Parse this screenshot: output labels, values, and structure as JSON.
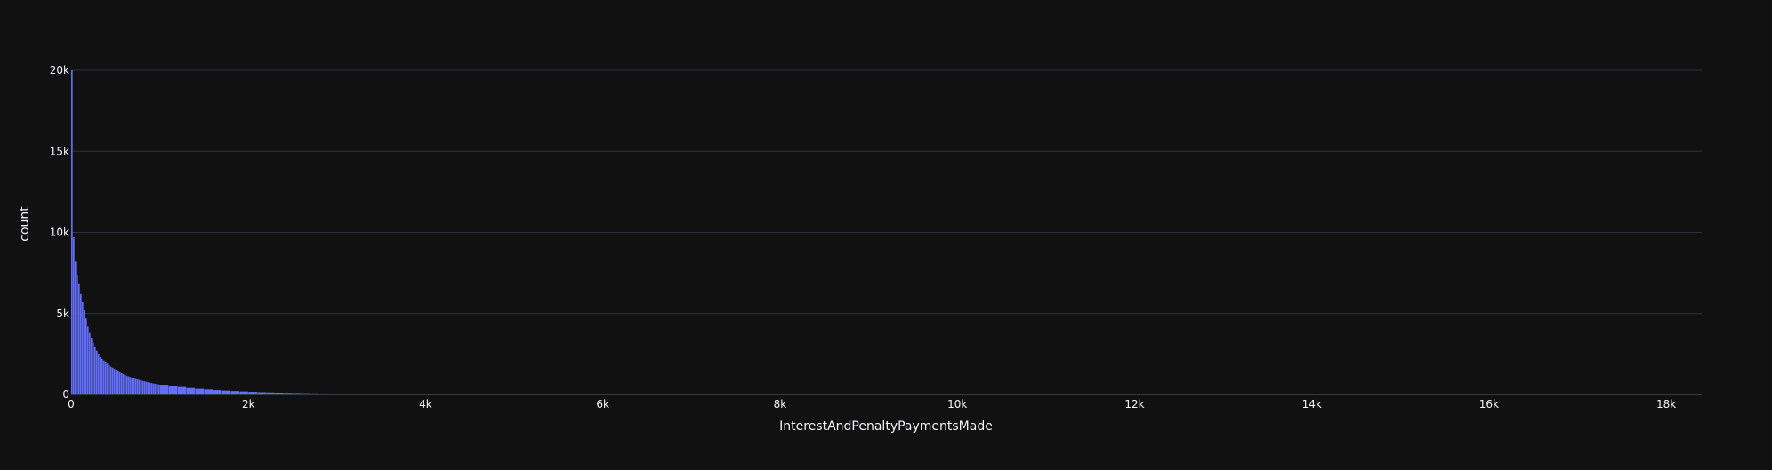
{
  "chart_data": {
    "type": "bar",
    "title": "",
    "xlabel": "InterestAndPenaltyPaymentsMade",
    "ylabel": "count",
    "xlim": [
      0,
      18400
    ],
    "ylim": [
      0,
      20000
    ],
    "bin_width": 20,
    "x_ticks": [
      0,
      2000,
      4000,
      6000,
      8000,
      10000,
      12000,
      14000,
      16000,
      18000
    ],
    "x_tick_labels": [
      "0",
      "2k",
      "4k",
      "6k",
      "8k",
      "10k",
      "12k",
      "14k",
      "16k",
      "18k"
    ],
    "y_ticks": [
      0,
      5000,
      10000,
      15000,
      20000
    ],
    "y_tick_labels": [
      "0",
      "5k",
      "10k",
      "15k",
      "20k"
    ],
    "grid": true,
    "legend": "none",
    "colors": {
      "background": "#111111",
      "bar": "#636efa",
      "grid": "#283442",
      "zeroline": "#506784",
      "text": "#f2f5fa"
    },
    "x": [
      0,
      20,
      40,
      60,
      80,
      100,
      120,
      140,
      160,
      180,
      200,
      220,
      240,
      260,
      280,
      300,
      320,
      340,
      360,
      380,
      400,
      420,
      440,
      460,
      480,
      500,
      520,
      540,
      560,
      580,
      600,
      620,
      640,
      660,
      680,
      700,
      720,
      740,
      760,
      780,
      800,
      820,
      840,
      860,
      880,
      900,
      920,
      940,
      960,
      980,
      1000,
      1100,
      1200,
      1300,
      1400,
      1500,
      1600,
      1700,
      1800,
      1900,
      2000,
      2100,
      2200,
      2300,
      2400,
      2500,
      2600,
      2700,
      2800,
      2900,
      3000,
      3200,
      3400,
      3600,
      3800,
      4000,
      4200,
      4400,
      4600,
      4800,
      5000,
      5300,
      5600
    ],
    "values": [
      20000,
      9700,
      8200,
      7400,
      6800,
      6200,
      5700,
      5200,
      4700,
      4200,
      3800,
      3500,
      3200,
      2950,
      2700,
      2500,
      2300,
      2200,
      2100,
      2000,
      1900,
      1800,
      1720,
      1650,
      1580,
      1500,
      1440,
      1380,
      1320,
      1260,
      1200,
      1160,
      1120,
      1080,
      1040,
      1000,
      960,
      930,
      900,
      870,
      840,
      810,
      780,
      755,
      730,
      705,
      680,
      660,
      640,
      620,
      600,
      520,
      460,
      400,
      350,
      310,
      270,
      240,
      210,
      185,
      160,
      140,
      125,
      110,
      97,
      85,
      75,
      66,
      58,
      51,
      45,
      36,
      29,
      23,
      18,
      14,
      11,
      9,
      7,
      6,
      5,
      4,
      3
    ]
  }
}
